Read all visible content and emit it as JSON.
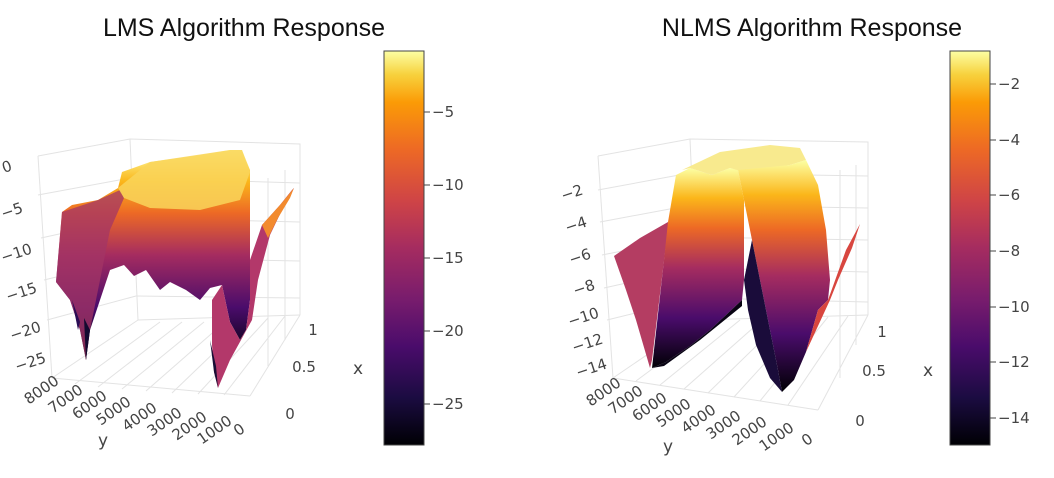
{
  "chart_data": [
    {
      "type": "surface3d",
      "title": "LMS Algorithm Response",
      "colorscale": "inferno",
      "z_ticks": [
        "0",
        "−5",
        "−10",
        "−15",
        "−20",
        "−25"
      ],
      "y_label": "y",
      "y_ticks": [
        "8000",
        "7000",
        "6000",
        "5000",
        "4000",
        "3000",
        "2000",
        "1000",
        "0"
      ],
      "x_label": "x",
      "x_ticks": [
        "1",
        "0.5",
        "0"
      ],
      "colorbar": {
        "range": [
          -28,
          -1
        ],
        "ticks": [
          "−5",
          "−10",
          "−15",
          "−20",
          "−25"
        ]
      }
    },
    {
      "type": "surface3d",
      "title": "NLMS Algorithm Response",
      "colorscale": "inferno",
      "z_ticks": [
        "−2",
        "−4",
        "−6",
        "−8",
        "−10",
        "−12",
        "−14"
      ],
      "y_label": "y",
      "y_ticks": [
        "8000",
        "7000",
        "6000",
        "5000",
        "4000",
        "3000",
        "2000",
        "1000",
        "0"
      ],
      "x_label": "x",
      "x_ticks": [
        "1",
        "0.5",
        "0"
      ],
      "colorbar": {
        "range": [
          -15,
          -0.6
        ],
        "ticks": [
          "−2",
          "−4",
          "−6",
          "−8",
          "−10",
          "−12",
          "−14"
        ]
      }
    }
  ]
}
